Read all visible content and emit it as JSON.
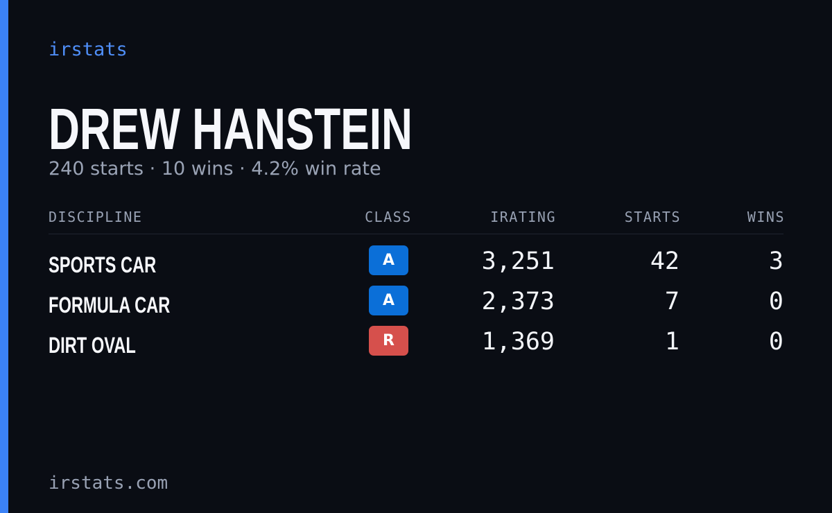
{
  "brand": "irstats",
  "profile": {
    "name": "DREW HANSTEIN",
    "summary": "240 starts · 10 wins · 4.2% win rate"
  },
  "table": {
    "headers": [
      "DISCIPLINE",
      "CLASS",
      "IRATING",
      "STARTS",
      "WINS"
    ],
    "rows": [
      [
        "SPORTS CAR",
        "A",
        "3,251",
        "42",
        "3"
      ],
      [
        "FORMULA CAR",
        "A",
        "2,373",
        "7",
        "0"
      ],
      [
        "DIRT OVAL",
        "R",
        "1,369",
        "1",
        "0"
      ]
    ]
  },
  "footer": "irstats.com"
}
